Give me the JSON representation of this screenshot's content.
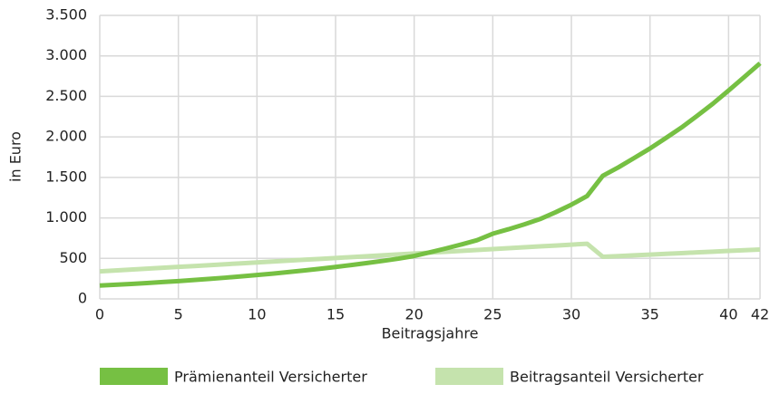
{
  "chart_data": {
    "type": "line",
    "xlabel": "Beitragsjahre",
    "ylabel": "in Euro",
    "x": [
      0,
      1,
      2,
      3,
      4,
      5,
      6,
      7,
      8,
      9,
      10,
      11,
      12,
      13,
      14,
      15,
      16,
      17,
      18,
      19,
      20,
      21,
      22,
      23,
      24,
      25,
      26,
      27,
      28,
      29,
      30,
      31,
      32,
      33,
      34,
      35,
      36,
      37,
      38,
      39,
      40,
      41,
      42
    ],
    "series": [
      {
        "name": "Prämienanteil Versicherter",
        "color": "#76c043",
        "values": [
          165,
          175,
          185,
          196,
          208,
          220,
          233,
          247,
          262,
          278,
          295,
          312,
          331,
          351,
          372,
          394,
          418,
          443,
          469,
          497,
          530,
          575,
          622,
          672,
          725,
          805,
          860,
          920,
          985,
          1070,
          1163,
          1270,
          1520,
          1625,
          1740,
          1857,
          1985,
          2115,
          2260,
          2410,
          2573,
          2740,
          2909
        ]
      },
      {
        "name": "Beitragsanteil Versicherter",
        "color": "#c5e3ad",
        "values": [
          340,
          351,
          362,
          373,
          384,
          395,
          406,
          417,
          428,
          439,
          450,
          461,
          472,
          483,
          494,
          505,
          516,
          527,
          538,
          549,
          560,
          571,
          582,
          593,
          604,
          615,
          626,
          637,
          648,
          659,
          670,
          681,
          520,
          529,
          538,
          547,
          556,
          565,
          574,
          583,
          592,
          601,
          610
        ]
      }
    ],
    "xlim": [
      0,
      42
    ],
    "xticks": [
      0,
      5,
      10,
      15,
      20,
      25,
      30,
      35,
      40,
      42
    ],
    "ylim": [
      0,
      3500
    ],
    "yticks": [
      0,
      500,
      {
        "value": 1000,
        "label": "1.000"
      },
      {
        "value": 1500,
        "label": "1.500"
      },
      {
        "value": 2000,
        "label": "2.000"
      },
      {
        "value": 2500,
        "label": "2.500"
      },
      {
        "value": 3000,
        "label": "3.000"
      },
      {
        "value": 3500,
        "label": "3.500"
      }
    ],
    "grid": true,
    "legend": "bottom"
  }
}
